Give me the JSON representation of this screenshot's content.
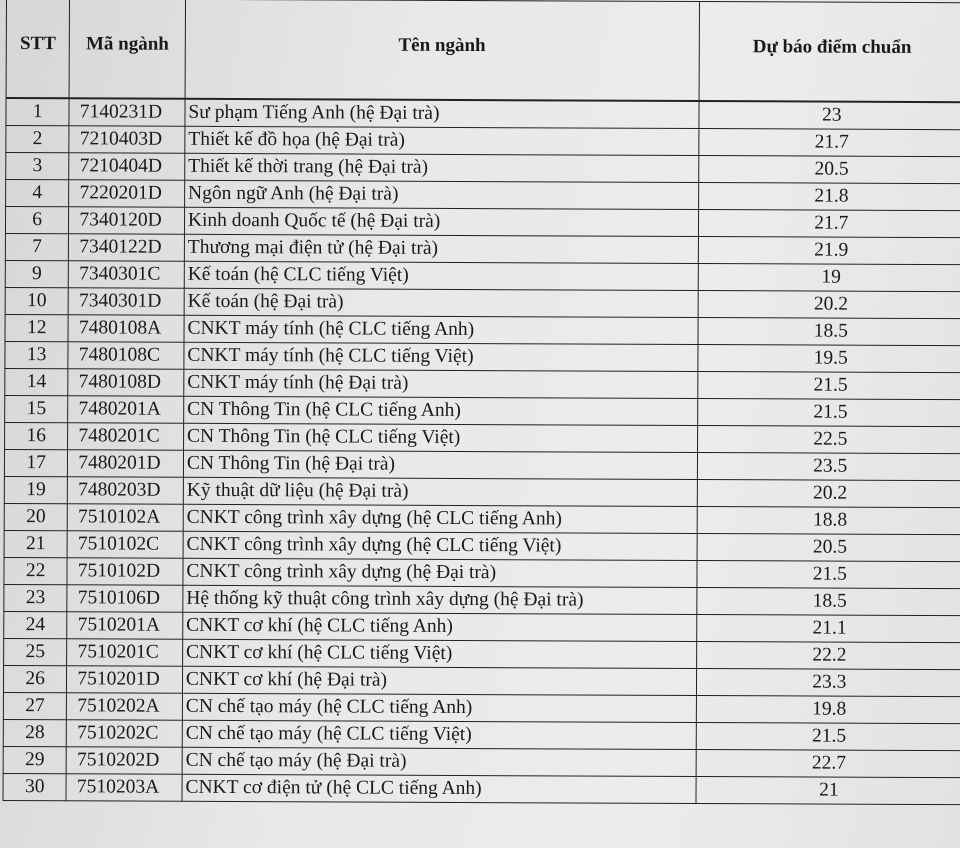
{
  "table": {
    "headers": [
      "STT",
      "Mã ngành",
      "Tên ngành",
      "Dự báo điểm chuẩn"
    ],
    "rows": [
      [
        "1",
        "7140231D",
        "Sư phạm Tiếng Anh (hệ Đại trà)",
        "23"
      ],
      [
        "2",
        "7210403D",
        "Thiết kế đồ họa (hệ Đại trà)",
        "21.7"
      ],
      [
        "3",
        "7210404D",
        "Thiết kế thời trang (hệ Đại trà)",
        "20.5"
      ],
      [
        "4",
        "7220201D",
        "Ngôn ngữ Anh (hệ Đại trà)",
        "21.8"
      ],
      [
        "6",
        "7340120D",
        "Kinh doanh Quốc tế (hệ Đại trà)",
        "21.7"
      ],
      [
        "7",
        "7340122D",
        "Thương mại điện tử (hệ Đại trà)",
        "21.9"
      ],
      [
        "9",
        "7340301C",
        "Kế toán (hệ CLC tiếng Việt)",
        "19"
      ],
      [
        "10",
        "7340301D",
        "Kế toán (hệ Đại trà)",
        "20.2"
      ],
      [
        "12",
        "7480108A",
        "CNKT máy tính (hệ CLC tiếng Anh)",
        "18.5"
      ],
      [
        "13",
        "7480108C",
        "CNKT máy tính (hệ CLC tiếng Việt)",
        "19.5"
      ],
      [
        "14",
        "7480108D",
        "CNKT máy tính (hệ Đại trà)",
        "21.5"
      ],
      [
        "15",
        "7480201A",
        "CN Thông Tin (hệ CLC tiếng Anh)",
        "21.5"
      ],
      [
        "16",
        "7480201C",
        "CN Thông Tin (hệ CLC tiếng Việt)",
        "22.5"
      ],
      [
        "17",
        "7480201D",
        "CN Thông Tin (hệ Đại trà)",
        "23.5"
      ],
      [
        "19",
        "7480203D",
        "Kỹ thuật dữ liệu (hệ Đại trà)",
        "20.2"
      ],
      [
        "20",
        "7510102A",
        "CNKT công trình xây dựng (hệ CLC tiếng Anh)",
        "18.8"
      ],
      [
        "21",
        "7510102C",
        "CNKT công trình xây dựng (hệ CLC tiếng Việt)",
        "20.5"
      ],
      [
        "22",
        "7510102D",
        "CNKT công trình xây dựng (hệ Đại trà)",
        "21.5"
      ],
      [
        "23",
        "7510106D",
        "Hệ thống kỹ thuật công trình xây dựng (hệ Đại trà)",
        "18.5"
      ],
      [
        "24",
        "7510201A",
        "CNKT cơ khí (hệ CLC tiếng Anh)",
        "21.1"
      ],
      [
        "25",
        "7510201C",
        "CNKT cơ khí (hệ CLC tiếng Việt)",
        "22.2"
      ],
      [
        "26",
        "7510201D",
        "CNKT cơ khí (hệ Đại trà)",
        "23.3"
      ],
      [
        "27",
        "7510202A",
        "CN chế tạo máy (hệ CLC tiếng Anh)",
        "19.8"
      ],
      [
        "28",
        "7510202C",
        "CN chế tạo máy (hệ CLC tiếng Việt)",
        "21.5"
      ],
      [
        "29",
        "7510202D",
        "CN chế tạo máy (hệ Đại trà)",
        "22.7"
      ],
      [
        "30",
        "7510203A",
        "CNKT cơ điện tử (hệ CLC tiếng Anh)",
        "21"
      ]
    ]
  }
}
